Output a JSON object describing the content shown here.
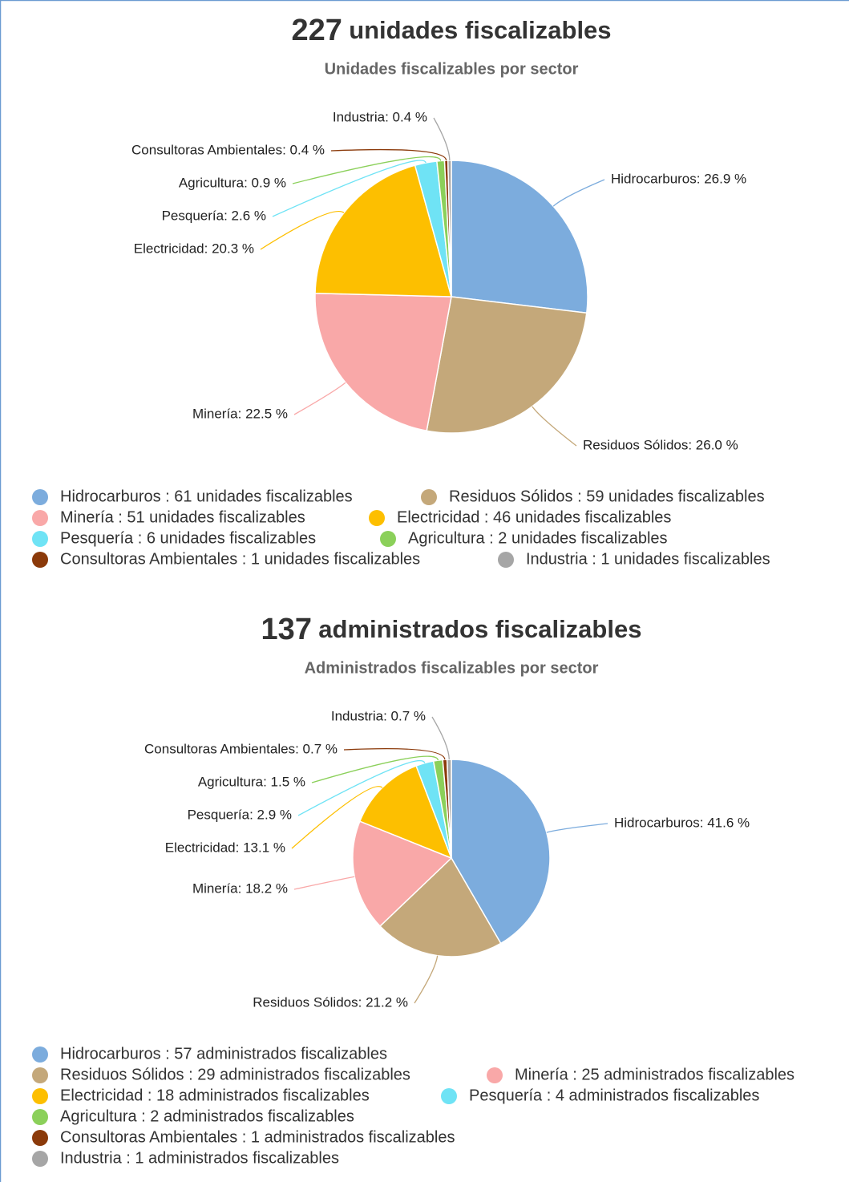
{
  "chart_data": [
    {
      "type": "pie",
      "total": 227,
      "title": "unidades fiscalizables",
      "subtitle": "Unidades fiscalizables por sector",
      "categories": [
        "Hidrocarburos",
        "Residuos Sólidos",
        "Minería",
        "Electricidad",
        "Pesquería",
        "Agricultura",
        "Consultoras Ambientales",
        "Industria"
      ],
      "values": [
        26.9,
        26.0,
        22.5,
        20.3,
        2.6,
        0.9,
        0.4,
        0.4
      ],
      "value_labels": [
        "Hidrocarburos: 26.9 %",
        "Residuos Sólidos: 26.0 %",
        "Minería: 22.5 %",
        "Electricidad: 20.3 %",
        "Pesquería: 2.6 %",
        "Agricultura: 0.9 %",
        "Consultoras Ambientales: 0.4 %",
        "Industria: 0.4 %"
      ],
      "legend_labels": [
        "Hidrocarburos : 61 unidades fiscalizables",
        "Residuos Sólidos : 59 unidades fiscalizables",
        "Minería : 51 unidades fiscalizables",
        "Electricidad : 46 unidades fiscalizables",
        "Pesquería : 6 unidades fiscalizables",
        "Agricultura : 2 unidades fiscalizables",
        "Consultoras Ambientales : 1 unidades fiscalizables",
        "Industria : 1 unidades fiscalizables"
      ],
      "colors": [
        "#7cacdd",
        "#c4a87a",
        "#f9a8a8",
        "#fdbf00",
        "#6fe3f5",
        "#8bd05a",
        "#8b3a0a",
        "#a6a6a6"
      ]
    },
    {
      "type": "pie",
      "total": 137,
      "title": "administrados fiscalizables",
      "subtitle": "Administrados fiscalizables por sector",
      "categories": [
        "Hidrocarburos",
        "Residuos Sólidos",
        "Minería",
        "Electricidad",
        "Pesquería",
        "Agricultura",
        "Consultoras Ambientales",
        "Industria"
      ],
      "values": [
        41.6,
        21.2,
        18.2,
        13.1,
        2.9,
        1.5,
        0.7,
        0.7
      ],
      "value_labels": [
        "Hidrocarburos: 41.6 %",
        "Residuos Sólidos: 21.2 %",
        "Minería: 18.2 %",
        "Electricidad: 13.1 %",
        "Pesquería: 2.9 %",
        "Agricultura: 1.5 %",
        "Consultoras Ambientales: 0.7 %",
        "Industria: 0.7 %"
      ],
      "legend_labels": [
        "Hidrocarburos : 57 administrados fiscalizables",
        "Residuos Sólidos : 29 administrados fiscalizables",
        "Minería : 25 administrados fiscalizables",
        "Electricidad : 18 administrados fiscalizables",
        "Pesquería : 4 administrados fiscalizables",
        "Agricultura : 2 administrados fiscalizables",
        "Consultoras Ambientales : 1 administrados fiscalizables",
        "Industria : 1 administrados fiscalizables"
      ],
      "colors": [
        "#7cacdd",
        "#c4a87a",
        "#f9a8a8",
        "#fdbf00",
        "#6fe3f5",
        "#8bd05a",
        "#8b3a0a",
        "#a6a6a6"
      ]
    }
  ]
}
